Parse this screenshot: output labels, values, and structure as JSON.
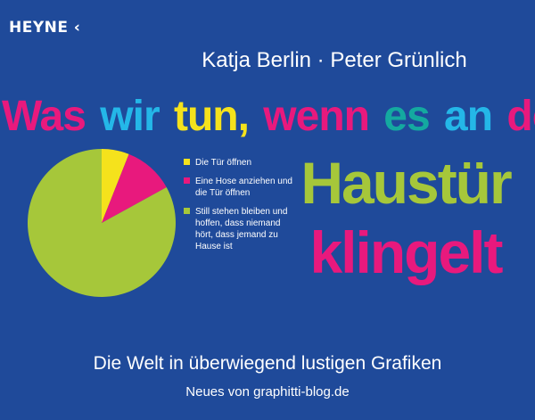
{
  "publisher": "HEYNE",
  "publisher_mark": "‹",
  "authors": "Katja Berlin · Peter Grünlich",
  "title": {
    "line1": [
      {
        "text": "Was",
        "color": "#e8197d"
      },
      {
        "text": "wir",
        "color": "#24b7e8"
      },
      {
        "text": "tun,",
        "color": "#f5e21c"
      },
      {
        "text": "wenn",
        "color": "#e8197d"
      },
      {
        "text": "es",
        "color": "#14a9a0"
      },
      {
        "text": "an",
        "color": "#24b7e8"
      },
      {
        "text": "der",
        "color": "#e8197d"
      }
    ],
    "line2": "Haustür",
    "line2_color": "#a6c73a",
    "line3": "klingelt",
    "line3_color": "#e8197d"
  },
  "chart_data": {
    "type": "pie",
    "slices": [
      {
        "label": "Die Tür öffnen",
        "value": 6,
        "color": "#f5e21c"
      },
      {
        "label": "Eine Hose anziehen und die Tür öffnen",
        "value": 11,
        "color": "#e8197d"
      },
      {
        "label": "Still stehen bleiben und hoffen, dass niemand hört, dass jemand zu Hause ist",
        "value": 83,
        "color": "#a6c73a"
      }
    ],
    "legend_position": "right"
  },
  "subtitle": "Die Welt in überwiegend lustigen Grafiken",
  "tagline": "Neues von graphitti-blog.de"
}
